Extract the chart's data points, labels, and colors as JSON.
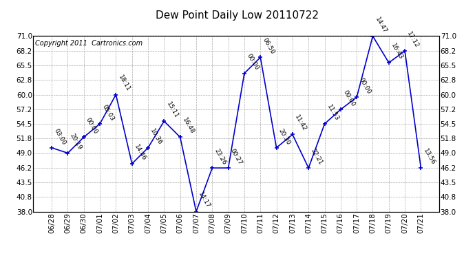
{
  "title": "Dew Point Daily Low 20110722",
  "copyright": "Copyright 2011  Cartronics.com",
  "dates": [
    "06/28",
    "06/29",
    "06/30",
    "07/01",
    "07/02",
    "07/03",
    "07/04",
    "07/05",
    "07/06",
    "07/07",
    "07/08",
    "07/09",
    "07/10",
    "07/11",
    "07/12",
    "07/13",
    "07/14",
    "07/15",
    "07/16",
    "07/17",
    "07/18",
    "07/19",
    "07/20",
    "07/21"
  ],
  "values": [
    50.0,
    49.0,
    52.0,
    54.5,
    60.0,
    47.0,
    50.0,
    55.0,
    52.0,
    38.0,
    46.2,
    46.2,
    64.0,
    67.0,
    50.0,
    52.5,
    46.2,
    54.5,
    57.2,
    59.5,
    71.0,
    66.0,
    68.2,
    46.2
  ],
  "labels": [
    "03:00",
    "20:19",
    "00:00",
    "05:03",
    "18:11",
    "14:46",
    "10:36",
    "15:11",
    "16:48",
    "14:17",
    "23:26",
    "00:27",
    "00:00",
    "06:50",
    "20:30",
    "11:42",
    "22:21",
    "11:53",
    "00:00",
    "00:00",
    "14:47",
    "16:43",
    "17:12",
    "13:56"
  ],
  "ylim": [
    38.0,
    71.0
  ],
  "yticks": [
    38.0,
    40.8,
    43.5,
    46.2,
    49.0,
    51.8,
    54.5,
    57.2,
    60.0,
    62.8,
    65.5,
    68.2,
    71.0
  ],
  "line_color": "#0000cc",
  "marker_color": "#0000cc",
  "bg_color": "#ffffff",
  "grid_color": "#aaaaaa",
  "title_fontsize": 11,
  "label_fontsize": 6.5,
  "tick_fontsize": 7.5,
  "copyright_fontsize": 7
}
